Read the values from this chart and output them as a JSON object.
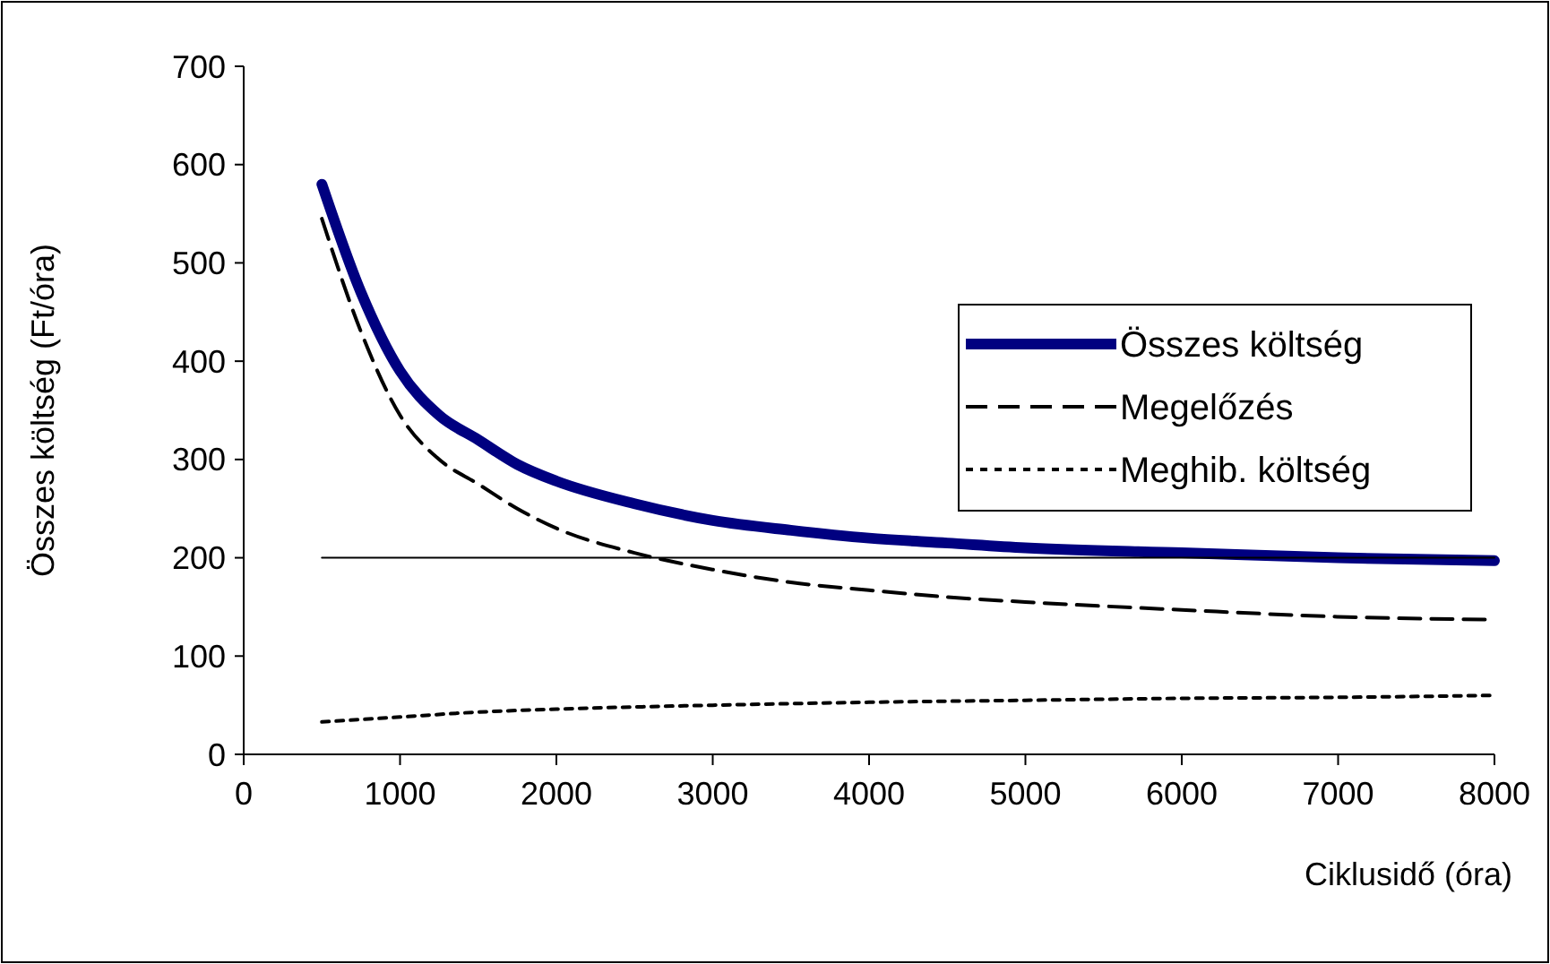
{
  "chart_data": {
    "type": "line",
    "xlabel": "Ciklusidő (óra)",
    "ylabel": "Összes költség (Ft/óra)",
    "xlim": [
      0,
      8000
    ],
    "xticks": [
      0,
      1000,
      2000,
      3000,
      4000,
      5000,
      6000,
      7000,
      8000
    ],
    "ylim": [
      0,
      700
    ],
    "yticks": [
      0,
      100,
      200,
      300,
      400,
      500,
      600,
      700
    ],
    "grid": false,
    "legend": "right",
    "marker": "none",
    "series": [
      {
        "name": "Összes költség",
        "color": "#000080",
        "line_style": "solid",
        "x": [
          500,
          750,
          1000,
          1250,
          1500,
          1750,
          2000,
          2500,
          3000,
          3500,
          4000,
          4500,
          5000,
          6000,
          7000,
          8000
        ],
        "values": [
          580,
          470,
          390,
          345,
          320,
          295,
          278,
          255,
          238,
          228,
          220,
          215,
          210,
          205,
          200,
          197
        ]
      },
      {
        "name": "Megelőzés",
        "color": "#000000",
        "line_style": "dashed",
        "x": [
          500,
          750,
          1000,
          1250,
          1500,
          1750,
          2000,
          2500,
          3000,
          3500,
          4000,
          4500,
          5000,
          6000,
          7000,
          8000
        ],
        "values": [
          545,
          430,
          345,
          300,
          275,
          250,
          230,
          205,
          188,
          175,
          167,
          160,
          155,
          147,
          140,
          137
        ]
      },
      {
        "name": "Meghib. költség",
        "color": "#000000",
        "line_style": "dotted",
        "x": [
          500,
          1000,
          1500,
          2000,
          3000,
          4000,
          5000,
          6000,
          7000,
          8000
        ],
        "values": [
          33,
          38,
          43,
          46,
          50,
          53,
          55,
          57,
          58,
          60
        ]
      },
      {
        "color": "#000000",
        "line_style": "solid",
        "x": [
          500,
          8000
        ],
        "values": [
          200,
          200
        ]
      }
    ]
  }
}
